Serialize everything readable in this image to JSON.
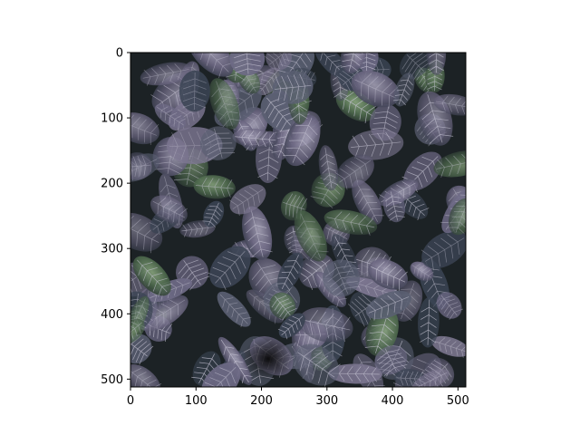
{
  "figure": {
    "image": {
      "description_icon": "plant-leaves-image",
      "background_color": "#1f2528",
      "leaf_colors": [
        "#3b4454",
        "#5a5f72",
        "#6e6a86",
        "#7c7690",
        "#3f5a4a",
        "#5c7d55",
        "#c9c7d6"
      ]
    }
  },
  "chart_data": {
    "type": "image",
    "xlim": [
      0,
      512
    ],
    "ylim": [
      512,
      0
    ],
    "x_ticks": [
      0,
      100,
      200,
      300,
      400,
      500
    ],
    "y_ticks": [
      0,
      100,
      200,
      300,
      400,
      500
    ],
    "x_tick_labels": [
      "0",
      "100",
      "200",
      "300",
      "400",
      "500"
    ],
    "y_tick_labels": [
      "0",
      "100",
      "200",
      "300",
      "400",
      "500"
    ]
  }
}
